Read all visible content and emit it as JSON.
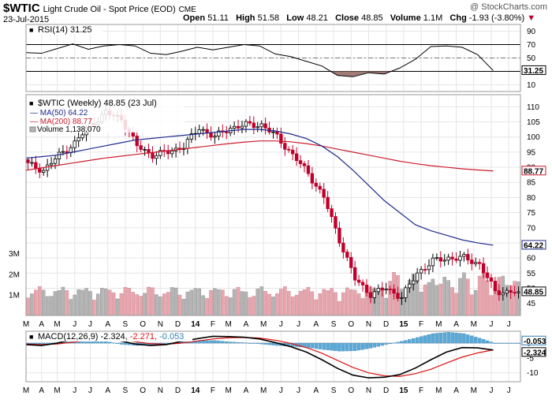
{
  "header": {
    "symbol": "$WTIC",
    "name": "Light Crude Oil - Spot Price (EOD)",
    "exchange": "CME",
    "date": "23-Jul-2015",
    "watermark": "@ StockCharts.com",
    "open_label": "Open",
    "open": "51.11",
    "high_label": "High",
    "high": "51.58",
    "low_label": "Low",
    "low": "48.21",
    "close_label": "Close",
    "close": "48.85",
    "volume_label": "Volume",
    "volume": "1.1M",
    "chg_label": "Chg",
    "chg": "-1.93 (-3.80%)",
    "chg_arrow": "▼"
  },
  "colors": {
    "up": "#000000",
    "down": "#c0002a",
    "ma50": "#1f2a8c",
    "ma200": "#cc1a2e",
    "vol_up": "#b4b4b4",
    "vol_down": "#e7a6ae",
    "rsi_fill": "#a07c76",
    "macd": "#000000",
    "signal": "#dd1111",
    "hist": "#5aa8d6",
    "legend_label": "#1f2a8c"
  },
  "chart_data": [
    {
      "type": "line",
      "title": "RSI(14) 31.25",
      "label": "RSI(14)",
      "value_text": "31.25",
      "ylim": [
        0,
        100
      ],
      "y_ticks": [
        90,
        70,
        50,
        30,
        10
      ],
      "levels": [
        70,
        30
      ],
      "x": [
        0,
        4,
        8,
        12,
        16,
        20,
        24,
        28,
        32,
        36,
        40,
        44,
        48,
        52,
        56,
        60,
        64,
        68,
        72,
        76,
        80,
        84,
        88,
        92,
        96,
        100,
        104,
        108,
        112,
        116,
        120
      ],
      "values": [
        58,
        57,
        64,
        71,
        63,
        68,
        70,
        68,
        57,
        55,
        60,
        66,
        62,
        66,
        70,
        68,
        56,
        52,
        45,
        38,
        24,
        22,
        28,
        26,
        35,
        48,
        67,
        68,
        66,
        55,
        31.25
      ]
    },
    {
      "type": "candlestick",
      "title": "$WTIC (Weekly) 48.85 (23 Jul)",
      "legend": [
        {
          "label": "MA(50)",
          "value": "64.22"
        },
        {
          "label": "MA(200)",
          "value": "88.77"
        },
        {
          "label": "Volume",
          "value": "1,138,070"
        }
      ],
      "last_close": "48.85",
      "ylim": [
        41,
        114
      ],
      "y_ticks": [
        110,
        105,
        100,
        95,
        90,
        85,
        80,
        75,
        70,
        65,
        60,
        55,
        50,
        45
      ],
      "volume_ticks": [
        "3M",
        "2M",
        "1M"
      ],
      "volume_values": [
        3000000,
        2000000,
        1000000
      ],
      "volume_max": 3800000,
      "ma50_label": "64.22",
      "ma200_label": "88.77",
      "x": [
        0,
        4,
        8,
        12,
        16,
        20,
        24,
        28,
        32,
        36,
        40,
        44,
        48,
        52,
        56,
        60,
        64,
        68,
        72,
        76,
        80,
        84,
        88,
        92,
        96,
        100,
        104,
        108,
        112,
        116,
        120
      ],
      "close": [
        91,
        89,
        94,
        98,
        104,
        108,
        106,
        97,
        94,
        95,
        97,
        103,
        100,
        103,
        104,
        104,
        100,
        94,
        88,
        80,
        66,
        53,
        48,
        50,
        47,
        55,
        59,
        60,
        60,
        58,
        48.85
      ],
      "ma50": [
        93,
        93.5,
        94,
        95,
        96,
        97,
        98,
        99,
        99.5,
        100,
        100.5,
        101,
        101.5,
        102,
        102.5,
        102.5,
        102,
        101,
        99.5,
        97,
        93.5,
        89,
        84,
        79,
        75,
        71,
        69,
        67.5,
        66,
        65,
        64.22
      ],
      "ma200": [
        89,
        89.8,
        90.6,
        91.4,
        92.2,
        93,
        93.6,
        94.2,
        94.8,
        95.4,
        96,
        96.6,
        97.2,
        97.8,
        98.3,
        98.7,
        98.7,
        98.4,
        97.8,
        97,
        96,
        95,
        94,
        93,
        92,
        91.2,
        90.5,
        90,
        89.5,
        89.1,
        88.77
      ]
    },
    {
      "type": "line",
      "title": "MACD(12,26,9) -2.324, -2.271, -0.053",
      "label": "MACD(12,26,9)",
      "macd_text": "-2.324",
      "signal_text": "-2.271",
      "hist_text": "-0.053",
      "ylim": [
        -13,
        4
      ],
      "y_ticks": [
        0,
        -5,
        -10
      ],
      "x": [
        0,
        4,
        8,
        12,
        16,
        20,
        24,
        28,
        32,
        36,
        40,
        44,
        48,
        52,
        56,
        60,
        64,
        68,
        72,
        76,
        80,
        84,
        88,
        92,
        96,
        100,
        104,
        108,
        112,
        116,
        120
      ],
      "macd": [
        -0.5,
        -0.8,
        0,
        1.2,
        2,
        2.1,
        0.8,
        -0.3,
        -0.8,
        -0.5,
        0.6,
        1.5,
        2.3,
        2.2,
        2,
        1.4,
        0.2,
        -1.2,
        -3,
        -5.6,
        -8.5,
        -10.8,
        -11.7,
        -11.5,
        -10.6,
        -8.4,
        -5.6,
        -3,
        -1.5,
        -1.6,
        -2.324
      ],
      "signal": [
        -0.3,
        -0.5,
        -0.3,
        0.3,
        1,
        1.5,
        1.2,
        0.5,
        -0.2,
        -0.4,
        0,
        0.7,
        1.4,
        1.8,
        1.9,
        1.7,
        1,
        -0.1,
        -1.5,
        -3.4,
        -5.8,
        -8.2,
        -10,
        -11,
        -11.2,
        -10.3,
        -8.8,
        -6.7,
        -4.7,
        -3.3,
        -2.271
      ],
      "hist": [
        -0.2,
        -0.3,
        0.3,
        0.9,
        1,
        0.6,
        -0.4,
        -0.8,
        -0.6,
        -0.1,
        0.6,
        0.8,
        0.9,
        0.4,
        0.1,
        -0.3,
        -0.8,
        -1.1,
        -1.5,
        -2.2,
        -2.7,
        -2.6,
        -1.7,
        -0.5,
        0.6,
        1.9,
        3.2,
        3.7,
        3.2,
        1.7,
        -0.053
      ]
    }
  ],
  "x_axis": {
    "labels": [
      {
        "t": 0,
        "text": "M"
      },
      {
        "t": 4,
        "text": "A"
      },
      {
        "t": 8,
        "text": "M"
      },
      {
        "t": 12.5,
        "text": "J"
      },
      {
        "t": 16.5,
        "text": "J"
      },
      {
        "t": 21,
        "text": "A"
      },
      {
        "t": 25.5,
        "text": "S"
      },
      {
        "t": 30,
        "text": "O"
      },
      {
        "t": 34.5,
        "text": "N"
      },
      {
        "t": 39,
        "text": "D"
      },
      {
        "t": 43.5,
        "text": "14"
      },
      {
        "t": 48,
        "text": "F"
      },
      {
        "t": 52,
        "text": "M"
      },
      {
        "t": 56.5,
        "text": "A"
      },
      {
        "t": 61,
        "text": "M"
      },
      {
        "t": 65.5,
        "text": "J"
      },
      {
        "t": 70,
        "text": "J"
      },
      {
        "t": 74.5,
        "text": "A"
      },
      {
        "t": 79,
        "text": "S"
      },
      {
        "t": 83.5,
        "text": "O"
      },
      {
        "t": 88,
        "text": "N"
      },
      {
        "t": 92.5,
        "text": "D"
      },
      {
        "t": 97,
        "text": "15"
      },
      {
        "t": 101.5,
        "text": "F"
      },
      {
        "t": 106,
        "text": "M"
      },
      {
        "t": 110.5,
        "text": "A"
      },
      {
        "t": 115,
        "text": "M"
      },
      {
        "t": 119.5,
        "text": "J"
      },
      {
        "t": 124,
        "text": "J"
      }
    ],
    "domain": [
      0,
      127
    ]
  }
}
